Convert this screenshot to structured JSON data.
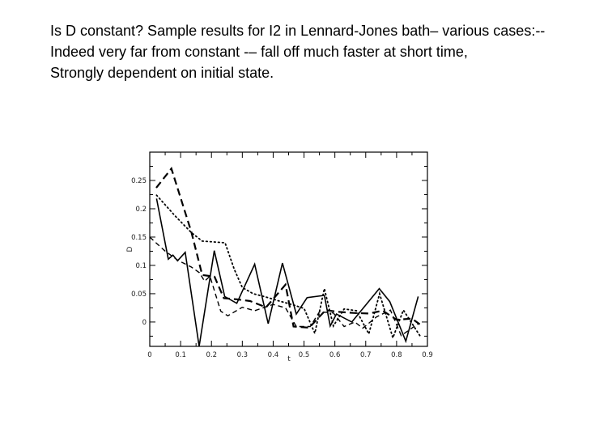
{
  "slide": {
    "background_color": "#ffffff",
    "text_color": "#000000",
    "text_lines": [
      "Is D constant? Sample results for I2 in Lennard-Jones bath– various cases:--",
      "Indeed very far from constant -– fall off much faster at short time,",
      "Strongly dependent on initial state."
    ]
  },
  "chart_data": {
    "type": "line",
    "title": "",
    "xlabel": "t",
    "ylabel": "D",
    "xlim": [
      0,
      0.9
    ],
    "ylim": [
      -0.043,
      0.3
    ],
    "grid": false,
    "legend": "none",
    "frame": "box-with-inward-ticks",
    "line_color": "#000000",
    "x_ticks": [
      0,
      0.1,
      0.2,
      0.3,
      0.4,
      0.5,
      0.6,
      0.7,
      0.8,
      0.9
    ],
    "x_tick_labels": [
      "0",
      "0.1",
      "0.2",
      "0.3",
      "0.4",
      "0.5",
      "0.6",
      "0.7",
      "0.8",
      "0.9"
    ],
    "x_minor_ticks": [
      0.05,
      0.15,
      0.25,
      0.35,
      0.45,
      0.55,
      0.65,
      0.75,
      0.85
    ],
    "y_ticks": [
      0,
      0.05,
      0.1,
      0.15,
      0.2,
      0.25
    ],
    "y_tick_labels": [
      "0",
      "0.05",
      "0.1",
      "0.15",
      "0.2",
      "0.25"
    ],
    "y_minor_ticks": [
      -0.025,
      0.025,
      0.075,
      0.125,
      0.175,
      0.225,
      0.275
    ],
    "series": [
      {
        "name": "case-1-solid",
        "style": "solid",
        "points": [
          [
            0.022,
            0.218
          ],
          [
            0.06,
            0.111
          ],
          [
            0.075,
            0.118
          ],
          [
            0.09,
            0.108
          ],
          [
            0.115,
            0.123
          ],
          [
            0.16,
            -0.043
          ],
          [
            0.209,
            0.126
          ],
          [
            0.243,
            0.045
          ],
          [
            0.282,
            0.033
          ],
          [
            0.34,
            0.102
          ],
          [
            0.384,
            -0.003
          ],
          [
            0.43,
            0.104
          ],
          [
            0.475,
            0.014
          ],
          [
            0.51,
            0.043
          ],
          [
            0.566,
            0.047
          ],
          [
            0.585,
            -0.007
          ],
          [
            0.605,
            0.014
          ],
          [
            0.655,
            0.0
          ],
          [
            0.744,
            0.059
          ],
          [
            0.778,
            0.036
          ],
          [
            0.83,
            -0.034
          ],
          [
            0.87,
            0.045
          ]
        ]
      },
      {
        "name": "case-2-long-dash",
        "style": "dash-long",
        "points": [
          [
            0.021,
            0.237
          ],
          [
            0.07,
            0.271
          ],
          [
            0.118,
            0.188
          ],
          [
            0.135,
            0.159
          ],
          [
            0.17,
            0.083
          ],
          [
            0.21,
            0.08
          ],
          [
            0.24,
            0.042
          ],
          [
            0.282,
            0.04
          ],
          [
            0.325,
            0.037
          ],
          [
            0.377,
            0.026
          ],
          [
            0.44,
            0.066
          ],
          [
            0.466,
            -0.008
          ],
          [
            0.517,
            -0.01
          ],
          [
            0.57,
            0.021
          ],
          [
            0.61,
            0.018
          ],
          [
            0.66,
            0.016
          ],
          [
            0.71,
            0.015
          ],
          [
            0.755,
            0.02
          ],
          [
            0.8,
            0.004
          ],
          [
            0.85,
            0.006
          ],
          [
            0.875,
            -0.004
          ]
        ]
      },
      {
        "name": "case-3-dotted",
        "style": "dotted",
        "points": [
          [
            0.022,
            0.224
          ],
          [
            0.083,
            0.187
          ],
          [
            0.135,
            0.158
          ],
          [
            0.17,
            0.143
          ],
          [
            0.244,
            0.14
          ],
          [
            0.274,
            0.093
          ],
          [
            0.3,
            0.061
          ],
          [
            0.335,
            0.05
          ],
          [
            0.377,
            0.044
          ],
          [
            0.42,
            0.037
          ],
          [
            0.466,
            0.03
          ],
          [
            0.5,
            0.024
          ],
          [
            0.535,
            -0.02
          ],
          [
            0.566,
            0.059
          ],
          [
            0.595,
            -0.007
          ],
          [
            0.63,
            0.023
          ],
          [
            0.67,
            0.02
          ],
          [
            0.71,
            -0.021
          ],
          [
            0.745,
            0.05
          ],
          [
            0.788,
            -0.028
          ],
          [
            0.822,
            0.021
          ],
          [
            0.88,
            -0.028
          ]
        ]
      },
      {
        "name": "case-4-short-dash",
        "style": "dash-short",
        "points": [
          [
            0.0,
            0.15
          ],
          [
            0.048,
            0.126
          ],
          [
            0.091,
            0.109
          ],
          [
            0.135,
            0.097
          ],
          [
            0.161,
            0.087
          ],
          [
            0.178,
            0.072
          ],
          [
            0.195,
            0.081
          ],
          [
            0.23,
            0.019
          ],
          [
            0.253,
            0.011
          ],
          [
            0.3,
            0.026
          ],
          [
            0.34,
            0.02
          ],
          [
            0.4,
            0.031
          ],
          [
            0.44,
            0.025
          ],
          [
            0.475,
            -0.008
          ],
          [
            0.52,
            -0.008
          ],
          [
            0.55,
            0.018
          ],
          [
            0.595,
            0.016
          ],
          [
            0.63,
            -0.008
          ],
          [
            0.665,
            0.0
          ],
          [
            0.69,
            -0.011
          ],
          [
            0.735,
            0.009
          ],
          [
            0.78,
            0.021
          ],
          [
            0.815,
            -0.024
          ],
          [
            0.87,
            -0.003
          ]
        ]
      }
    ]
  }
}
